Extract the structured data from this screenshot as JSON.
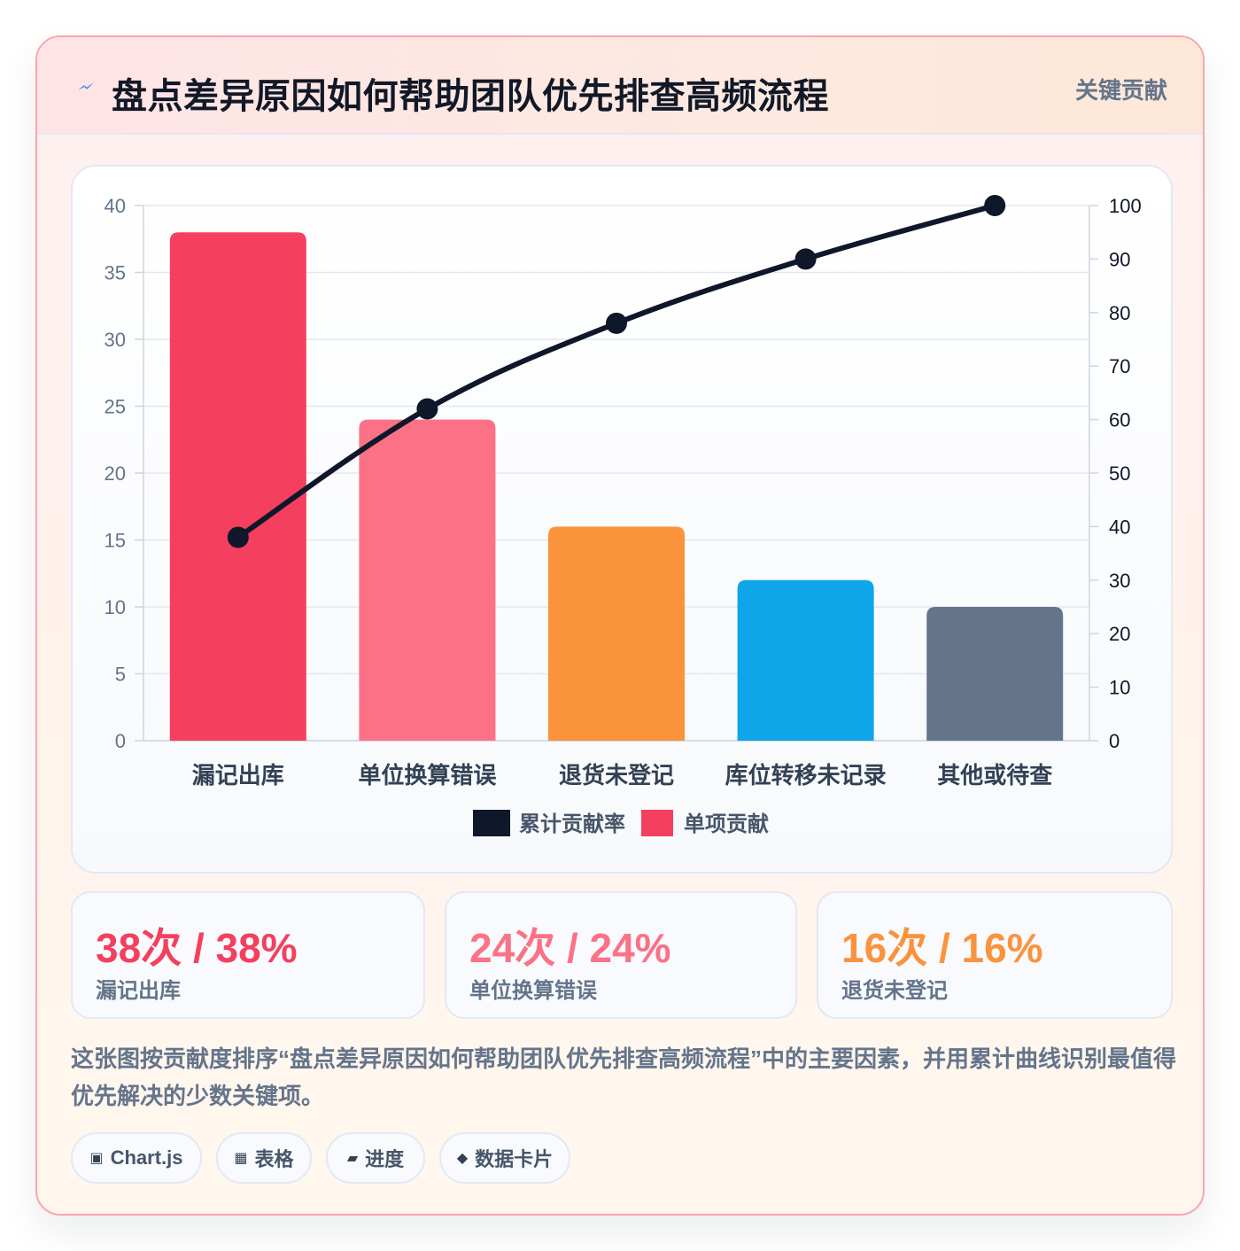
{
  "header": {
    "title": "盘点差异原因如何帮助团队优先排查高频流程",
    "badge": "关键贡献",
    "icon": "lightning-icon"
  },
  "chart_data": {
    "type": "bar",
    "categories": [
      "漏记出库",
      "单位换算错误",
      "退货未登记",
      "库位转移未记录",
      "其他或待查"
    ],
    "series": [
      {
        "name": "单项贡献",
        "type": "bar",
        "values": [
          38,
          24,
          16,
          12,
          10
        ],
        "colors": [
          "#f43f5e",
          "#fb7185",
          "#fb923c",
          "#0ea5e9",
          "#64748b"
        ]
      },
      {
        "name": "累计贡献率",
        "type": "line",
        "axis": "right",
        "values": [
          38,
          62,
          78,
          90,
          100
        ],
        "color": "#0f172a"
      }
    ],
    "y_left": {
      "min": 0,
      "max": 40,
      "ticks": [
        0,
        5,
        10,
        15,
        20,
        25,
        30,
        35,
        40
      ]
    },
    "y_right": {
      "min": 0,
      "max": 100,
      "ticks": [
        0,
        10,
        20,
        30,
        40,
        50,
        60,
        70,
        80,
        90,
        100
      ]
    },
    "legend": [
      "累计贡献率",
      "单项贡献"
    ],
    "legend_position": "bottom",
    "grid": true
  },
  "stats": [
    {
      "value": "38次 / 38%",
      "label": "漏记出库",
      "color": "#f43f5e"
    },
    {
      "value": "24次 / 24%",
      "label": "单位换算错误",
      "color": "#fb7185"
    },
    {
      "value": "16次 / 16%",
      "label": "退货未登记",
      "color": "#fb923c"
    }
  ],
  "description": "这张图按贡献度排序“盘点差异原因如何帮助团队优先排查高频流程”中的主要因素，并用累计曲线识别最值得优先解决的少数关键项。",
  "tags": [
    {
      "icon": "▣",
      "label": "Chart.js"
    },
    {
      "icon": "▦",
      "label": "表格"
    },
    {
      "icon": "▰",
      "label": "进度"
    },
    {
      "icon": "◆",
      "label": "数据卡片"
    }
  ]
}
